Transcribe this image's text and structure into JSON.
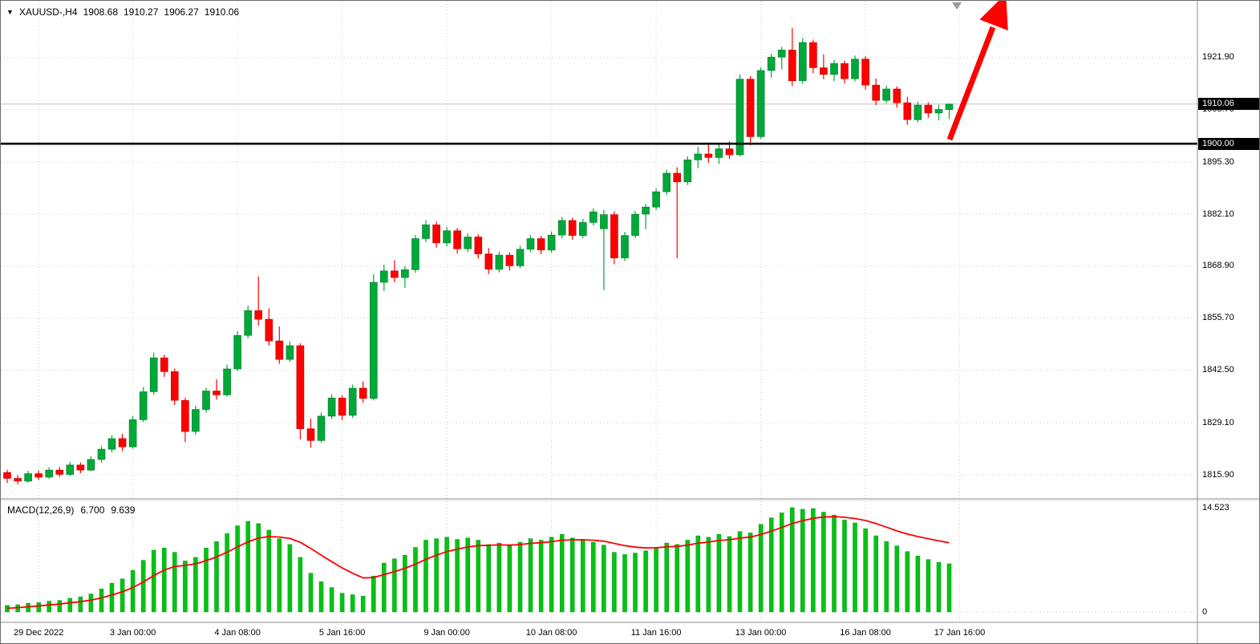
{
  "header": {
    "dropdown_icon": "▼",
    "symbol": "XAUUSD-,H4",
    "open": "1908.68",
    "high": "1910.27",
    "low": "1906.27",
    "close": "1910.06"
  },
  "price_axis": {
    "ticks": [
      1921.9,
      1908.7,
      1895.3,
      1882.1,
      1868.9,
      1855.7,
      1842.5,
      1829.1,
      1815.9
    ],
    "current_price_badge": "1910.06",
    "hline_badge": "1900.00"
  },
  "time_axis": {
    "labels": [
      {
        "text": "29 Dec 2022",
        "index": 3
      },
      {
        "text": "3 Jan 00:00",
        "index": 12
      },
      {
        "text": "4 Jan 08:00",
        "index": 22
      },
      {
        "text": "5 Jan 16:00",
        "index": 32
      },
      {
        "text": "9 Jan 00:00",
        "index": 42
      },
      {
        "text": "10 Jan 08:00",
        "index": 52
      },
      {
        "text": "11 Jan 16:00",
        "index": 62
      },
      {
        "text": "13 Jan 00:00",
        "index": 72
      },
      {
        "text": "16 Jan 08:00",
        "index": 82
      },
      {
        "text": "17 Jan 16:00",
        "index": 91
      }
    ]
  },
  "indicator": {
    "label": "MACD(12,26,9)",
    "macd_value": "6.700",
    "signal_value": "9.639",
    "axis_max": "14.523",
    "axis_zero": "0"
  },
  "levels": {
    "hline": 1900.0,
    "current_price": 1910.06
  },
  "colors": {
    "bull": "#00A83A",
    "bull_border": "#007A26",
    "bear": "#FF0000",
    "bear_border": "#C00000",
    "grid": "#CFCFCF",
    "separator": "#8C8C8C",
    "histogram": "#00C412",
    "histogram_border": "#00940C",
    "signal": "#FF0000",
    "hline": "#000000",
    "bid_line": "#C0C0C0",
    "arrow": "#FF0000",
    "badge_bg": "#000000",
    "badge_text": "#FFFFFF",
    "shift_marker": "#9A9A9A"
  },
  "chart_data": {
    "type": "candlestick",
    "title": "XAUUSD- H4 chart with MACD(12,26,9) subwindow, thick black horizontal line at 1900.00 and large red up arrow annotation",
    "symbol": "XAUUSD-",
    "timeframe": "H4",
    "price_axis_range": [
      1810.0,
      1936.3
    ],
    "macd_axis_range": [
      0,
      14.523
    ],
    "legend_position": "none",
    "grid": "dotted",
    "candles": [
      [
        1816.5,
        1817.2,
        1813.8,
        1815.0
      ],
      [
        1815.0,
        1815.8,
        1813.5,
        1814.3
      ],
      [
        1814.3,
        1816.9,
        1813.9,
        1816.2
      ],
      [
        1816.2,
        1817.0,
        1814.6,
        1815.3
      ],
      [
        1815.3,
        1817.8,
        1814.9,
        1817.1
      ],
      [
        1817.1,
        1817.9,
        1815.4,
        1816.0
      ],
      [
        1816.0,
        1819.2,
        1815.6,
        1818.4
      ],
      [
        1818.4,
        1819.0,
        1816.3,
        1817.1
      ],
      [
        1817.1,
        1820.6,
        1816.8,
        1819.8
      ],
      [
        1819.8,
        1823.2,
        1819.0,
        1822.4
      ],
      [
        1822.4,
        1826.0,
        1821.6,
        1825.1
      ],
      [
        1825.1,
        1826.3,
        1821.9,
        1823.0
      ],
      [
        1823.0,
        1830.8,
        1822.5,
        1829.9
      ],
      [
        1829.9,
        1838.2,
        1829.3,
        1837.0
      ],
      [
        1837.0,
        1847.0,
        1836.2,
        1845.6
      ],
      [
        1845.6,
        1846.4,
        1840.8,
        1842.1
      ],
      [
        1842.1,
        1842.9,
        1833.6,
        1834.8
      ],
      [
        1834.8,
        1835.5,
        1824.2,
        1826.9
      ],
      [
        1826.9,
        1833.4,
        1826.1,
        1832.5
      ],
      [
        1832.5,
        1838.0,
        1831.7,
        1837.2
      ],
      [
        1837.2,
        1840.1,
        1835.0,
        1836.2
      ],
      [
        1836.2,
        1843.9,
        1835.8,
        1842.8
      ],
      [
        1842.8,
        1852.4,
        1842.2,
        1851.3
      ],
      [
        1851.3,
        1858.9,
        1850.6,
        1857.6
      ],
      [
        1857.6,
        1866.3,
        1853.8,
        1855.4
      ],
      [
        1855.4,
        1858.2,
        1848.7,
        1849.9
      ],
      [
        1849.9,
        1853.6,
        1844.1,
        1845.2
      ],
      [
        1845.2,
        1849.8,
        1844.6,
        1848.7
      ],
      [
        1848.7,
        1849.3,
        1824.9,
        1827.6
      ],
      [
        1827.6,
        1830.2,
        1822.8,
        1824.6
      ],
      [
        1824.6,
        1831.7,
        1824.0,
        1830.8
      ],
      [
        1830.8,
        1836.3,
        1830.1,
        1835.4
      ],
      [
        1835.4,
        1836.1,
        1829.8,
        1831.0
      ],
      [
        1831.0,
        1838.8,
        1830.4,
        1837.9
      ],
      [
        1837.9,
        1839.6,
        1834.2,
        1835.3
      ],
      [
        1835.3,
        1866.9,
        1834.8,
        1864.8
      ],
      [
        1864.8,
        1869.3,
        1862.6,
        1867.7
      ],
      [
        1867.7,
        1870.4,
        1864.8,
        1866.0
      ],
      [
        1866.0,
        1868.9,
        1863.4,
        1868.0
      ],
      [
        1868.0,
        1876.8,
        1867.2,
        1875.9
      ],
      [
        1875.9,
        1880.6,
        1875.0,
        1879.4
      ],
      [
        1879.4,
        1880.2,
        1873.6,
        1874.8
      ],
      [
        1874.8,
        1878.9,
        1873.9,
        1877.9
      ],
      [
        1877.9,
        1878.6,
        1872.1,
        1873.3
      ],
      [
        1873.3,
        1877.2,
        1872.5,
        1876.3
      ],
      [
        1876.3,
        1877.0,
        1870.8,
        1872.0
      ],
      [
        1872.0,
        1873.5,
        1866.9,
        1868.1
      ],
      [
        1868.1,
        1872.6,
        1867.3,
        1871.7
      ],
      [
        1871.7,
        1872.4,
        1867.8,
        1869.0
      ],
      [
        1869.0,
        1874.1,
        1868.4,
        1873.2
      ],
      [
        1873.2,
        1876.8,
        1872.4,
        1875.9
      ],
      [
        1875.9,
        1876.6,
        1871.9,
        1873.0
      ],
      [
        1873.0,
        1877.7,
        1872.3,
        1876.8
      ],
      [
        1876.8,
        1881.4,
        1876.0,
        1880.5
      ],
      [
        1880.5,
        1881.2,
        1875.6,
        1876.7
      ],
      [
        1876.7,
        1880.9,
        1876.0,
        1880.0
      ],
      [
        1880.0,
        1883.6,
        1879.2,
        1882.7
      ],
      [
        1878.4,
        1883.2,
        1862.8,
        1882.0
      ],
      [
        1882.0,
        1882.8,
        1869.4,
        1871.0
      ],
      [
        1871.0,
        1877.6,
        1870.2,
        1876.7
      ],
      [
        1876.7,
        1882.9,
        1876.0,
        1882.1
      ],
      [
        1882.1,
        1884.7,
        1878.3,
        1883.9
      ],
      [
        1883.9,
        1888.6,
        1883.1,
        1887.8
      ],
      [
        1887.8,
        1893.4,
        1886.9,
        1892.5
      ],
      [
        1892.5,
        1894.0,
        1870.9,
        1890.3
      ],
      [
        1890.3,
        1896.8,
        1889.5,
        1895.9
      ],
      [
        1895.9,
        1899.2,
        1893.8,
        1897.4
      ],
      [
        1897.4,
        1900.3,
        1895.2,
        1896.5
      ],
      [
        1896.5,
        1899.8,
        1894.9,
        1898.7
      ],
      [
        1898.7,
        1900.6,
        1896.1,
        1897.2
      ],
      [
        1897.2,
        1917.6,
        1896.8,
        1916.4
      ],
      [
        1916.4,
        1917.2,
        1899.6,
        1901.8
      ],
      [
        1901.8,
        1919.4,
        1901.2,
        1918.6
      ],
      [
        1918.6,
        1922.9,
        1916.8,
        1922.0
      ],
      [
        1922.0,
        1924.6,
        1918.9,
        1923.8
      ],
      [
        1923.8,
        1929.4,
        1914.6,
        1916.0
      ],
      [
        1916.0,
        1926.8,
        1915.2,
        1925.7
      ],
      [
        1925.7,
        1926.4,
        1917.9,
        1919.3
      ],
      [
        1919.3,
        1922.7,
        1916.4,
        1917.6
      ],
      [
        1917.6,
        1921.3,
        1915.9,
        1920.4
      ],
      [
        1920.4,
        1921.1,
        1915.3,
        1916.5
      ],
      [
        1916.5,
        1922.4,
        1915.8,
        1921.5
      ],
      [
        1921.5,
        1922.2,
        1913.7,
        1914.9
      ],
      [
        1914.9,
        1916.6,
        1909.8,
        1911.0
      ],
      [
        1911.0,
        1914.8,
        1910.3,
        1913.9
      ],
      [
        1913.9,
        1914.6,
        1909.2,
        1910.4
      ],
      [
        1910.4,
        1911.9,
        1904.8,
        1906.1
      ],
      [
        1906.1,
        1910.7,
        1905.4,
        1909.8
      ],
      [
        1909.8,
        1910.5,
        1906.6,
        1907.8
      ],
      [
        1907.8,
        1909.9,
        1905.9,
        1908.7
      ],
      [
        1908.68,
        1910.27,
        1906.27,
        1910.06
      ]
    ],
    "indicators": {
      "macd_histogram": [
        0.9,
        1.0,
        1.2,
        1.3,
        1.5,
        1.6,
        1.9,
        2.1,
        2.5,
        3.2,
        4.0,
        4.6,
        5.8,
        7.2,
        8.6,
        8.9,
        8.3,
        7.1,
        7.6,
        8.9,
        9.8,
        10.9,
        12.0,
        12.6,
        12.3,
        11.4,
        10.2,
        9.4,
        7.6,
        5.4,
        4.2,
        3.4,
        2.6,
        2.4,
        2.2,
        5.0,
        6.8,
        7.4,
        7.9,
        9.0,
        10.0,
        10.2,
        10.4,
        10.1,
        10.3,
        10.0,
        9.4,
        9.6,
        9.2,
        9.7,
        10.2,
        10.0,
        10.4,
        10.8,
        10.3,
        10.1,
        9.7,
        9.3,
        8.3,
        8.0,
        8.2,
        8.5,
        9.0,
        9.6,
        9.4,
        10.0,
        10.6,
        10.4,
        10.8,
        10.5,
        11.2,
        11.0,
        12.2,
        13.1,
        13.8,
        14.52,
        14.3,
        14.4,
        13.9,
        13.5,
        12.8,
        12.4,
        11.6,
        10.6,
        9.8,
        9.2,
        8.4,
        7.8,
        7.3,
        6.9,
        6.7
      ],
      "macd_signal": [
        0.5,
        0.6,
        0.72,
        0.84,
        0.97,
        1.1,
        1.26,
        1.43,
        1.64,
        1.95,
        2.36,
        2.81,
        3.41,
        4.17,
        5.06,
        5.83,
        6.32,
        6.48,
        6.7,
        7.14,
        7.67,
        8.32,
        9.06,
        9.77,
        10.28,
        10.5,
        10.44,
        10.23,
        9.7,
        8.84,
        7.91,
        7.01,
        6.13,
        5.38,
        4.74,
        4.79,
        5.19,
        5.63,
        6.08,
        6.66,
        7.33,
        7.9,
        8.4,
        8.74,
        9.05,
        9.24,
        9.27,
        9.34,
        9.31,
        9.39,
        9.55,
        9.64,
        9.79,
        9.99,
        10.05,
        10.06,
        9.99,
        9.85,
        9.54,
        9.23,
        9.03,
        8.92,
        8.94,
        9.07,
        9.13,
        9.31,
        9.57,
        9.73,
        9.95,
        10.06,
        10.29,
        10.43,
        10.78,
        11.25,
        11.76,
        12.31,
        12.71,
        13.05,
        13.22,
        13.27,
        13.18,
        13.02,
        12.74,
        12.31,
        11.81,
        11.29,
        10.85,
        10.5,
        10.2,
        9.9,
        9.639
      ]
    },
    "annotations": [
      "thick black horizontal line at 1900.00 across whole pane",
      "large red up-trending arrow at top right pointing above chart",
      "black price badges on right axis at 1910.06 and 1900.00"
    ]
  }
}
